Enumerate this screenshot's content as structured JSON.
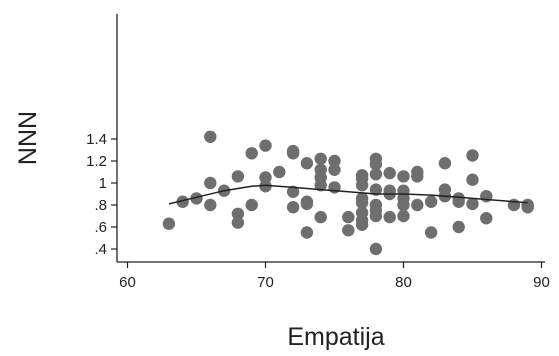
{
  "chart_data": {
    "type": "scatter",
    "xlabel": "Empatija",
    "ylabel": "NNN",
    "xlim": [
      59,
      91
    ],
    "ylim": [
      0.37,
      1.48
    ],
    "x_ticks": [
      60,
      70,
      80,
      90
    ],
    "x_tick_labels": [
      "60",
      "70",
      "80",
      "90"
    ],
    "y_ticks": [
      0.4,
      0.6,
      0.8,
      1.0,
      1.2,
      1.4
    ],
    "y_tick_labels": [
      ".4",
      ".6",
      ".8",
      "1",
      "1.2",
      "1.4"
    ],
    "grid": false,
    "point_color": "#6e6e6e",
    "line_color": "#222222",
    "series": [
      {
        "type": "scatter",
        "points": [
          [
            63,
            0.63
          ],
          [
            64,
            0.83
          ],
          [
            65,
            0.86
          ],
          [
            66,
            1.42
          ],
          [
            66,
            1.0
          ],
          [
            66,
            0.8
          ],
          [
            67,
            0.93
          ],
          [
            68,
            1.06
          ],
          [
            68,
            0.72
          ],
          [
            68,
            0.64
          ],
          [
            69,
            1.27
          ],
          [
            69,
            0.8
          ],
          [
            70,
            1.34
          ],
          [
            70,
            1.05
          ],
          [
            70,
            0.97
          ],
          [
            71,
            1.1
          ],
          [
            72,
            1.29
          ],
          [
            72,
            1.27
          ],
          [
            72,
            0.92
          ],
          [
            72,
            0.78
          ],
          [
            73,
            1.18
          ],
          [
            73,
            0.83
          ],
          [
            73,
            0.81
          ],
          [
            73,
            0.55
          ],
          [
            74,
            1.22
          ],
          [
            74,
            1.12
          ],
          [
            74,
            1.05
          ],
          [
            74,
            0.98
          ],
          [
            74,
            0.69
          ],
          [
            75,
            1.2
          ],
          [
            75,
            1.12
          ],
          [
            75,
            0.96
          ],
          [
            76,
            0.69
          ],
          [
            76,
            0.57
          ],
          [
            77,
            1.07
          ],
          [
            77,
            1.04
          ],
          [
            77,
            0.98
          ],
          [
            77,
            0.86
          ],
          [
            77,
            0.82
          ],
          [
            77,
            0.73
          ],
          [
            77,
            0.66
          ],
          [
            77,
            0.62
          ],
          [
            78,
            1.22
          ],
          [
            78,
            1.17
          ],
          [
            78,
            1.08
          ],
          [
            78,
            0.94
          ],
          [
            78,
            0.8
          ],
          [
            78,
            0.75
          ],
          [
            78,
            0.7
          ],
          [
            78,
            0.4
          ],
          [
            79,
            1.09
          ],
          [
            79,
            0.93
          ],
          [
            79,
            0.9
          ],
          [
            79,
            0.69
          ],
          [
            80,
            1.06
          ],
          [
            80,
            0.93
          ],
          [
            80,
            0.86
          ],
          [
            80,
            0.8
          ],
          [
            80,
            0.7
          ],
          [
            81,
            1.1
          ],
          [
            81,
            1.06
          ],
          [
            81,
            0.8
          ],
          [
            82,
            0.83
          ],
          [
            82,
            0.55
          ],
          [
            83,
            1.18
          ],
          [
            83,
            0.94
          ],
          [
            83,
            0.88
          ],
          [
            84,
            0.86
          ],
          [
            84,
            0.83
          ],
          [
            84,
            0.6
          ],
          [
            85,
            1.25
          ],
          [
            85,
            1.03
          ],
          [
            85,
            0.81
          ],
          [
            86,
            0.88
          ],
          [
            86,
            0.68
          ],
          [
            88,
            0.8
          ],
          [
            89,
            0.8
          ],
          [
            89,
            0.78
          ]
        ]
      },
      {
        "type": "line",
        "points": [
          [
            63,
            0.81
          ],
          [
            65,
            0.87
          ],
          [
            67,
            0.93
          ],
          [
            69,
            0.97
          ],
          [
            70,
            0.98
          ],
          [
            72,
            0.96
          ],
          [
            74,
            0.94
          ],
          [
            76,
            0.92
          ],
          [
            78,
            0.9
          ],
          [
            80,
            0.9
          ],
          [
            82,
            0.89
          ],
          [
            84,
            0.87
          ],
          [
            86,
            0.85
          ],
          [
            88,
            0.83
          ],
          [
            89,
            0.82
          ]
        ]
      }
    ]
  }
}
